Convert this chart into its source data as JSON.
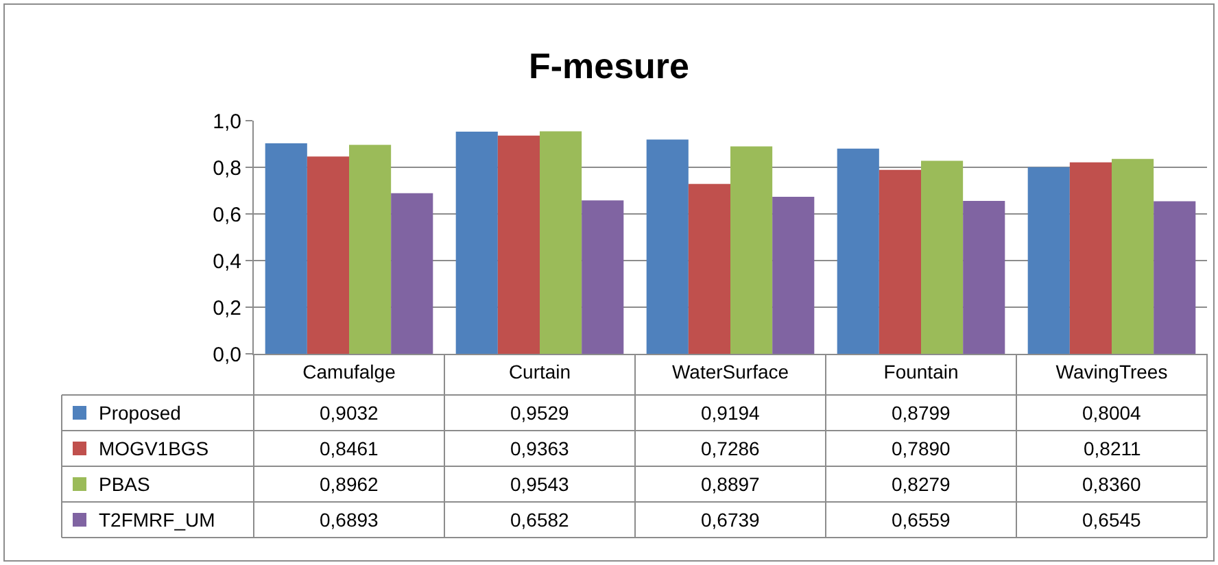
{
  "chart_data": {
    "type": "bar",
    "title": "F-mesure",
    "categories": [
      "Camufalge",
      "Curtain",
      "WaterSurface",
      "Fountain",
      "WavingTrees"
    ],
    "series": [
      {
        "name": "Proposed",
        "color": "#4f81bd",
        "values": [
          0.9032,
          0.9529,
          0.9194,
          0.8799,
          0.8004
        ],
        "value_labels": [
          "0,9032",
          "0,9529",
          "0,9194",
          "0,8799",
          "0,8004"
        ]
      },
      {
        "name": "MOGV1BGS",
        "color": "#c0504d",
        "values": [
          0.8461,
          0.9363,
          0.7286,
          0.789,
          0.8211
        ],
        "value_labels": [
          "0,8461",
          "0,9363",
          "0,7286",
          "0,7890",
          "0,8211"
        ]
      },
      {
        "name": "PBAS",
        "color": "#9bbb59",
        "values": [
          0.8962,
          0.9543,
          0.8897,
          0.8279,
          0.836
        ],
        "value_labels": [
          "0,8962",
          "0,9543",
          "0,8897",
          "0,8279",
          "0,8360"
        ]
      },
      {
        "name": "T2FMRF_UM",
        "color": "#8064a2",
        "values": [
          0.6893,
          0.6582,
          0.6739,
          0.6559,
          0.6545
        ],
        "value_labels": [
          "0,6893",
          "0,6582",
          "0,6739",
          "0,6559",
          "0,6545"
        ]
      }
    ],
    "ylim": [
      0,
      1.0
    ],
    "yticks": [
      {
        "value": 0,
        "label": "0,0"
      },
      {
        "value": 0.2,
        "label": "0,2"
      },
      {
        "value": 0.4,
        "label": "0,4"
      },
      {
        "value": 0.6,
        "label": "0,6"
      },
      {
        "value": 0.8,
        "label": "0,8"
      },
      {
        "value": 1.0,
        "label": "1,0"
      }
    ],
    "grid": "y",
    "legend": "bottom left"
  }
}
